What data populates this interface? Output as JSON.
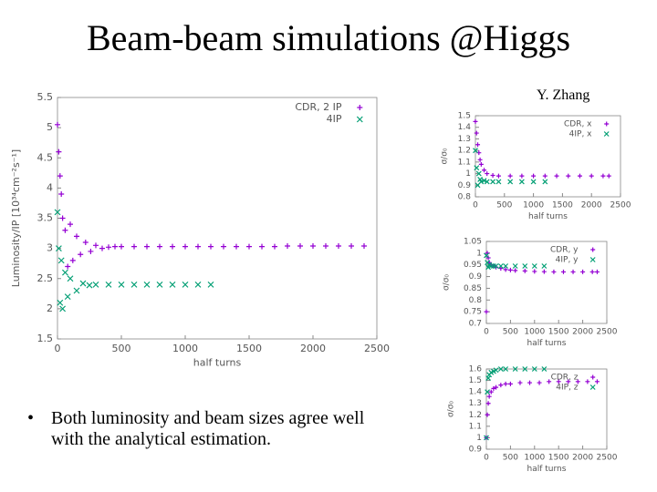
{
  "title": "Beam-beam simulations @Higgs",
  "author": "Y. Zhang",
  "bullets": [
    "Both luminosity and beam sizes agree well with the analytical estimation."
  ],
  "chart_data": [
    {
      "type": "scatter",
      "xlabel": "half turns",
      "ylabel": "Luminosity/IP [10³⁴cm⁻²s⁻¹]",
      "xlim": [
        0,
        2500
      ],
      "xticks": [
        0,
        500,
        1000,
        1500,
        2000,
        2500
      ],
      "ylim": [
        1.5,
        5.5
      ],
      "yticks": [
        1.5,
        2,
        2.5,
        3,
        3.5,
        4,
        4.5,
        5,
        5.5
      ],
      "legend": "top-right",
      "series": [
        {
          "name": "CDR, 2 IP",
          "color": "#9400d3",
          "marker": "+",
          "x": [
            0,
            10,
            20,
            30,
            40,
            60,
            80,
            100,
            120,
            150,
            180,
            220,
            260,
            300,
            350,
            400,
            450,
            500,
            600,
            700,
            800,
            900,
            1000,
            1100,
            1200,
            1300,
            1400,
            1500,
            1600,
            1700,
            1800,
            1900,
            2000,
            2100,
            2200,
            2300,
            2400
          ],
          "values": [
            5.05,
            4.6,
            4.2,
            3.9,
            3.5,
            3.3,
            2.7,
            3.4,
            2.8,
            3.2,
            2.9,
            3.1,
            2.95,
            3.05,
            3.0,
            3.02,
            3.03,
            3.03,
            3.03,
            3.03,
            3.03,
            3.03,
            3.03,
            3.03,
            3.03,
            3.03,
            3.03,
            3.03,
            3.03,
            3.03,
            3.04,
            3.04,
            3.04,
            3.04,
            3.04,
            3.04,
            3.04
          ]
        },
        {
          "name": "4IP",
          "color": "#009e73",
          "marker": "x",
          "x": [
            0,
            10,
            20,
            30,
            40,
            60,
            80,
            100,
            150,
            200,
            250,
            300,
            400,
            500,
            600,
            700,
            800,
            900,
            1000,
            1100,
            1200
          ],
          "values": [
            3.6,
            3.0,
            2.1,
            2.8,
            2.0,
            2.6,
            2.2,
            2.5,
            2.3,
            2.42,
            2.39,
            2.4,
            2.4,
            2.4,
            2.4,
            2.4,
            2.4,
            2.4,
            2.4,
            2.4,
            2.4
          ]
        }
      ]
    },
    {
      "type": "scatter",
      "xlabel": "half turns",
      "ylabel": "σ/σ₀",
      "xlim": [
        0,
        2500
      ],
      "xticks": [
        0,
        500,
        1000,
        1500,
        2000,
        2500
      ],
      "ylim": [
        0.8,
        1.5
      ],
      "yticks": [
        0.8,
        0.9,
        1,
        1.1,
        1.2,
        1.3,
        1.4,
        1.5
      ],
      "legend": "top-right",
      "series": [
        {
          "name": "CDR, x",
          "color": "#9400d3",
          "marker": "+",
          "x": [
            0,
            20,
            40,
            60,
            80,
            100,
            150,
            200,
            300,
            400,
            600,
            800,
            1000,
            1200,
            1400,
            1600,
            1800,
            2000,
            2200,
            2300
          ],
          "values": [
            1.45,
            1.35,
            1.25,
            1.18,
            1.12,
            1.08,
            1.03,
            1.0,
            0.985,
            0.98,
            0.98,
            0.98,
            0.98,
            0.98,
            0.98,
            0.98,
            0.98,
            0.98,
            0.98,
            0.98
          ]
        },
        {
          "name": "4IP, x",
          "color": "#009e73",
          "marker": "x",
          "x": [
            0,
            20,
            40,
            60,
            80,
            100,
            150,
            200,
            300,
            400,
            600,
            800,
            1000,
            1200
          ],
          "values": [
            1.2,
            1.05,
            0.9,
            1.0,
            0.95,
            0.93,
            0.94,
            0.93,
            0.93,
            0.93,
            0.93,
            0.93,
            0.93,
            0.93
          ]
        }
      ]
    },
    {
      "type": "scatter",
      "xlabel": "half turns",
      "ylabel": "σ/σ₀",
      "xlim": [
        0,
        2500
      ],
      "xticks": [
        0,
        500,
        1000,
        1500,
        2000,
        2500
      ],
      "ylim": [
        0.7,
        1.05
      ],
      "yticks": [
        0.7,
        0.75,
        0.8,
        0.85,
        0.9,
        0.95,
        1,
        1.05
      ],
      "legend": "top-right",
      "series": [
        {
          "name": "CDR, y",
          "color": "#9400d3",
          "marker": "+",
          "x": [
            0,
            20,
            40,
            60,
            100,
            150,
            200,
            300,
            400,
            500,
            600,
            800,
            1000,
            1200,
            1400,
            1600,
            1800,
            2000,
            2200,
            2300
          ],
          "values": [
            0.75,
            1.0,
            0.98,
            0.96,
            0.95,
            0.945,
            0.94,
            0.935,
            0.93,
            0.928,
            0.926,
            0.924,
            0.922,
            0.921,
            0.92,
            0.92,
            0.92,
            0.92,
            0.92,
            0.92
          ]
        },
        {
          "name": "4IP, y",
          "color": "#009e73",
          "marker": "x",
          "x": [
            0,
            20,
            40,
            60,
            100,
            150,
            200,
            300,
            400,
            600,
            800,
            1000,
            1200
          ],
          "values": [
            0.99,
            0.96,
            0.94,
            0.95,
            0.945,
            0.945,
            0.945,
            0.945,
            0.945,
            0.945,
            0.945,
            0.945,
            0.945
          ]
        }
      ]
    },
    {
      "type": "scatter",
      "xlabel": "half turns",
      "ylabel": "σ/σ₀",
      "xlim": [
        0,
        2500
      ],
      "xticks": [
        0,
        500,
        1000,
        1500,
        2000,
        2500
      ],
      "ylim": [
        0.9,
        1.6
      ],
      "yticks": [
        0.9,
        1,
        1.1,
        1.2,
        1.3,
        1.4,
        1.5,
        1.6
      ],
      "legend": "top-right",
      "series": [
        {
          "name": "CDR, z",
          "color": "#9400d3",
          "marker": "+",
          "x": [
            0,
            20,
            40,
            60,
            100,
            150,
            200,
            300,
            400,
            500,
            700,
            900,
            1100,
            1300,
            1500,
            1700,
            1900,
            2100,
            2300
          ],
          "values": [
            1.0,
            1.2,
            1.3,
            1.36,
            1.4,
            1.43,
            1.44,
            1.46,
            1.47,
            1.47,
            1.48,
            1.48,
            1.48,
            1.49,
            1.49,
            1.49,
            1.49,
            1.49,
            1.49
          ]
        },
        {
          "name": "4IP, z",
          "color": "#009e73",
          "marker": "x",
          "x": [
            0,
            20,
            40,
            60,
            100,
            150,
            200,
            300,
            400,
            600,
            800,
            1000,
            1200
          ],
          "values": [
            1.0,
            1.4,
            1.52,
            1.55,
            1.57,
            1.58,
            1.59,
            1.6,
            1.6,
            1.6,
            1.6,
            1.6,
            1.6
          ]
        }
      ]
    }
  ]
}
